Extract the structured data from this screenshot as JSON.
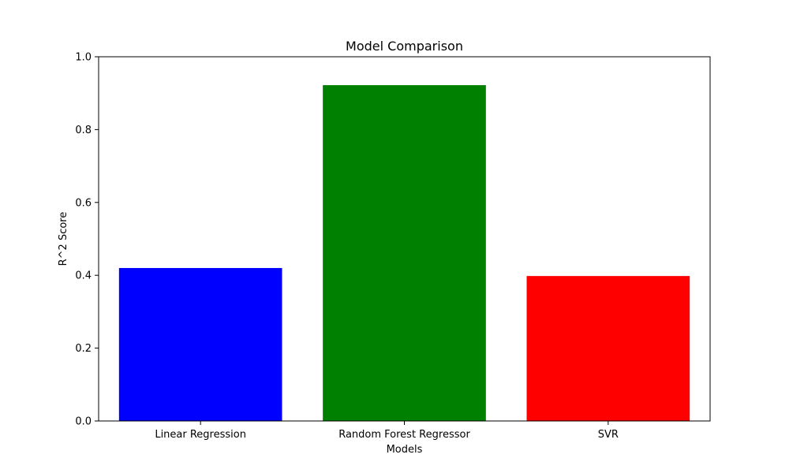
{
  "chart_data": {
    "type": "bar",
    "title": "Model Comparison",
    "xlabel": "Models",
    "ylabel": "R^2 Score",
    "categories": [
      "Linear Regression",
      "Random Forest Regressor",
      "SVR"
    ],
    "values": [
      0.42,
      0.922,
      0.398
    ],
    "colors": [
      "#0000ff",
      "#008000",
      "#ff0000"
    ],
    "ylim": [
      0,
      1.0
    ],
    "yticks": [
      "0.0",
      "0.2",
      "0.4",
      "0.6",
      "0.8",
      "1.0"
    ],
    "grid": false,
    "legend": "none"
  }
}
